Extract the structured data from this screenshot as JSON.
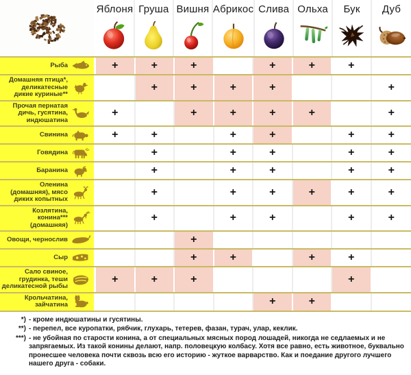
{
  "header": {
    "corner_icon": "wood-chips",
    "woods": [
      {
        "name": "Яблоня",
        "icon": "apple"
      },
      {
        "name": "Груша",
        "icon": "pear"
      },
      {
        "name": "Вишня",
        "icon": "cherry"
      },
      {
        "name": "Абрикос",
        "icon": "apricot"
      },
      {
        "name": "Слива",
        "icon": "plum"
      },
      {
        "name": "Ольха",
        "icon": "alder"
      },
      {
        "name": "Бук",
        "icon": "beech"
      },
      {
        "name": "Дуб",
        "icon": "oak"
      }
    ]
  },
  "plus_symbol": "+",
  "rows": [
    {
      "label": "Рыба",
      "icon": "fish",
      "cells": [
        "P",
        "P",
        "P",
        "",
        "P",
        "P",
        "+",
        ""
      ]
    },
    {
      "label": "Домашняя птица*, деликатесные дикие куриные**",
      "icon": "hen",
      "cells": [
        "",
        "P",
        "P",
        "P",
        "P",
        "",
        "",
        "+"
      ]
    },
    {
      "label": "Прочая пернатая дичь, гусятина, индюшатина",
      "icon": "goose",
      "cells": [
        "+",
        "",
        "P",
        "P",
        "P",
        "P",
        "",
        "+"
      ]
    },
    {
      "label": "Свинина",
      "icon": "pig",
      "cells": [
        "+",
        "+",
        "",
        "+",
        "P",
        "",
        "+",
        "+"
      ]
    },
    {
      "label": "Говядина",
      "icon": "cow",
      "cells": [
        "",
        "+",
        "",
        "+",
        "+",
        "",
        "+",
        "+"
      ]
    },
    {
      "label": "Баранина",
      "icon": "ram",
      "cells": [
        "",
        "+",
        "",
        "+",
        "+",
        "",
        "+",
        "+"
      ]
    },
    {
      "label": "Оленина (домашняя), мясо диких копытных",
      "icon": "deer",
      "cells": [
        "",
        "+",
        "",
        "+",
        "+",
        "P",
        "+",
        "+"
      ]
    },
    {
      "label": "Козлятина, конина*** (домашняя)",
      "icon": "goat",
      "cells": [
        "",
        "+",
        "",
        "+",
        "+",
        "",
        "+",
        "+"
      ]
    },
    {
      "label": "Овощи, чернослив",
      "icon": "pepper",
      "cells": [
        "",
        "",
        "P",
        "",
        "",
        "",
        "",
        ""
      ]
    },
    {
      "label": "Сыр",
      "icon": "cheese",
      "cells": [
        "",
        "",
        "P",
        "P",
        "",
        "P",
        "+",
        ""
      ]
    },
    {
      "label": "Сало свиное, грудинка, теши деликатесной рыбы",
      "icon": "bacon",
      "cells": [
        "P",
        "P",
        "P",
        "",
        "",
        "",
        "P",
        ""
      ]
    },
    {
      "label": "Крольчатина, зайчатина",
      "icon": "rabbit",
      "cells": [
        "",
        "",
        "",
        "",
        "P",
        "P",
        "",
        ""
      ]
    }
  ],
  "footnotes": [
    {
      "marker": "*)",
      "text": "- кроме индюшатины и гусятины."
    },
    {
      "marker": "**)",
      "text": "- перепел, все куропатки, рябчик, глухарь, тетерев, фазан, турач, улар, кеклик."
    },
    {
      "marker": "***)",
      "text": "- не убойная по старости конина, а от специальных мясных пород лошадей, никогда не седлаемых и не запрягаемых. Из такой конины делают, напр. половецкую колбасу. Хотя все равно, есть животное, буквально пронесшее человека почти сквозь всю его историю - жуткое варварство. Как и поедание другого лучшего нашего друга - собаки."
    }
  ],
  "colors": {
    "label_bg": "#ffff38",
    "highlight_bg": "#f7d2c6",
    "row_divider": "#c9ba63",
    "column_divider": "#ededed",
    "plus_color": "#151515",
    "label_icon_color": "#a5821f"
  },
  "chart_data": {
    "type": "table",
    "title": "",
    "columns": [
      "Яблоня",
      "Груша",
      "Вишня",
      "Абрикос",
      "Слива",
      "Ольха",
      "Бук",
      "Дуб"
    ],
    "row_labels": [
      "Рыба",
      "Домашняя птица*, деликатесные дикие куриные**",
      "Прочая пернатая дичь, гусятина, индюшатина",
      "Свинина",
      "Говядина",
      "Баранина",
      "Оленина (домашняя), мясо диких копытных",
      "Козлятина, конина*** (домашняя)",
      "Овощи, чернослив",
      "Сыр",
      "Сало свиное, грудинка, теши деликатесной рыбы",
      "Крольчатина, зайчатина"
    ],
    "matrix": [
      [
        "P",
        "P",
        "P",
        "",
        "P",
        "P",
        "+",
        ""
      ],
      [
        "",
        "P",
        "P",
        "P",
        "P",
        "",
        "",
        "+"
      ],
      [
        "+",
        "",
        "P",
        "P",
        "P",
        "P",
        "",
        "+"
      ],
      [
        "+",
        "+",
        "",
        "+",
        "P",
        "",
        "+",
        "+"
      ],
      [
        "",
        "+",
        "",
        "+",
        "+",
        "",
        "+",
        "+"
      ],
      [
        "",
        "+",
        "",
        "+",
        "+",
        "",
        "+",
        "+"
      ],
      [
        "",
        "+",
        "",
        "+",
        "+",
        "P",
        "+",
        "+"
      ],
      [
        "",
        "+",
        "",
        "+",
        "+",
        "",
        "+",
        "+"
      ],
      [
        "",
        "",
        "P",
        "",
        "",
        "",
        "",
        ""
      ],
      [
        "",
        "",
        "P",
        "P",
        "",
        "P",
        "+",
        ""
      ],
      [
        "P",
        "P",
        "P",
        "",
        "",
        "",
        "P",
        ""
      ],
      [
        "",
        "",
        "",
        "",
        "P",
        "P",
        "",
        ""
      ]
    ],
    "cell_legend": {
      "+": "plus mark on white cell",
      "P": "plus mark on pink highlighted cell",
      "": "empty cell"
    }
  }
}
